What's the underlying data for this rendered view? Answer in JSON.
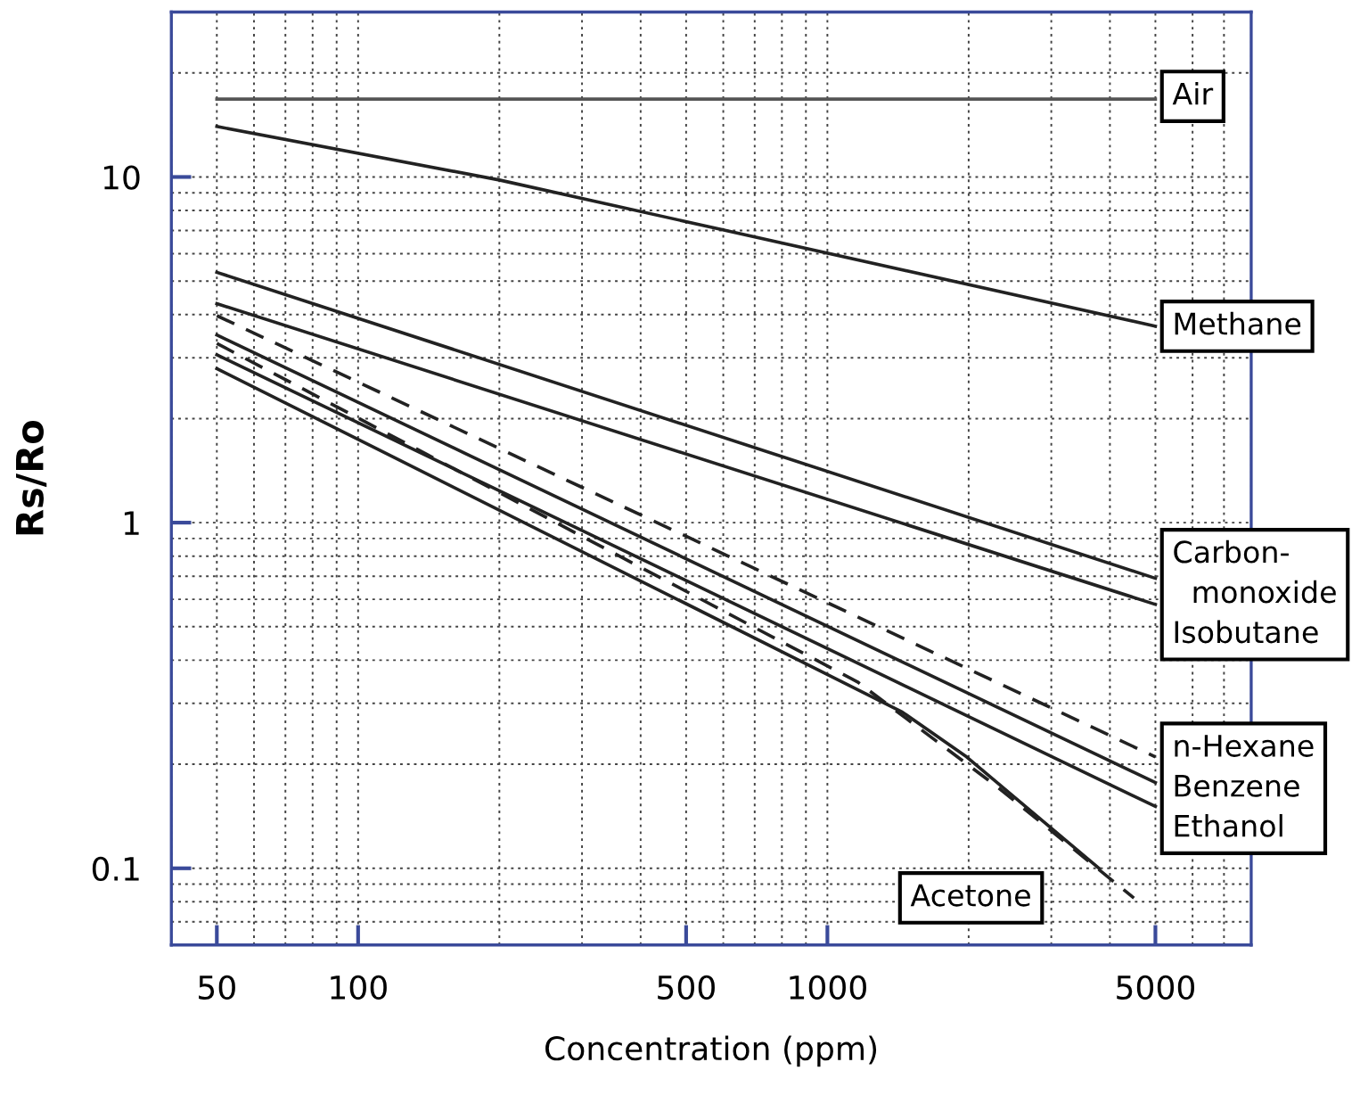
{
  "chart_data": {
    "type": "line",
    "xlabel": "Concentration (ppm)",
    "ylabel": "Rs/Ro",
    "log": "xy",
    "grid": true,
    "legend": false,
    "xlim": [
      40,
      8000
    ],
    "xticks": [
      50,
      100,
      500,
      1000,
      5000
    ],
    "ylim": [
      0.06,
      30
    ],
    "yticks": [
      0.1,
      1,
      10
    ],
    "series": [
      {
        "color": "#555555",
        "line_style": "solid",
        "x": [
          50,
          5000
        ],
        "values": [
          16.8,
          16.8
        ]
      },
      {
        "color": "#222222",
        "line_style": "solid",
        "x": [
          50,
          200,
          5000
        ],
        "values": [
          14,
          9.8,
          3.7
        ]
      },
      {
        "color": "#222222",
        "line_style": "solid",
        "x": [
          50,
          5000
        ],
        "values": [
          5.3,
          0.69
        ]
      },
      {
        "color": "#222222",
        "line_style": "solid",
        "x": [
          50,
          5000
        ],
        "values": [
          4.3,
          0.58
        ]
      },
      {
        "color": "#222222",
        "line_style": "dashed",
        "x": [
          50,
          5000
        ],
        "values": [
          3.97,
          0.21
        ]
      },
      {
        "color": "#222222",
        "line_style": "solid",
        "x": [
          50,
          5000
        ],
        "values": [
          3.49,
          0.177
        ]
      },
      {
        "color": "#222222",
        "line_style": "solid",
        "x": [
          50,
          5000
        ],
        "values": [
          3.06,
          0.151
        ]
      },
      {
        "color": "#222222",
        "line_style": "dashed",
        "x": [
          50,
          1160,
          2290,
          4500
        ],
        "values": [
          3.3,
          0.346,
          0.173,
          0.082
        ]
      },
      {
        "color": "#222222",
        "line_style": "solid",
        "x": [
          50,
          1445,
          1980,
          3790
        ],
        "values": [
          2.79,
          0.283,
          0.21,
          0.1
        ]
      }
    ],
    "annotations": [
      "Air",
      "Methane",
      "Carbon-\n  monoxide\nIsobutane",
      "n-Hexane\nBenzene\nEthanol",
      "Acetone"
    ]
  }
}
